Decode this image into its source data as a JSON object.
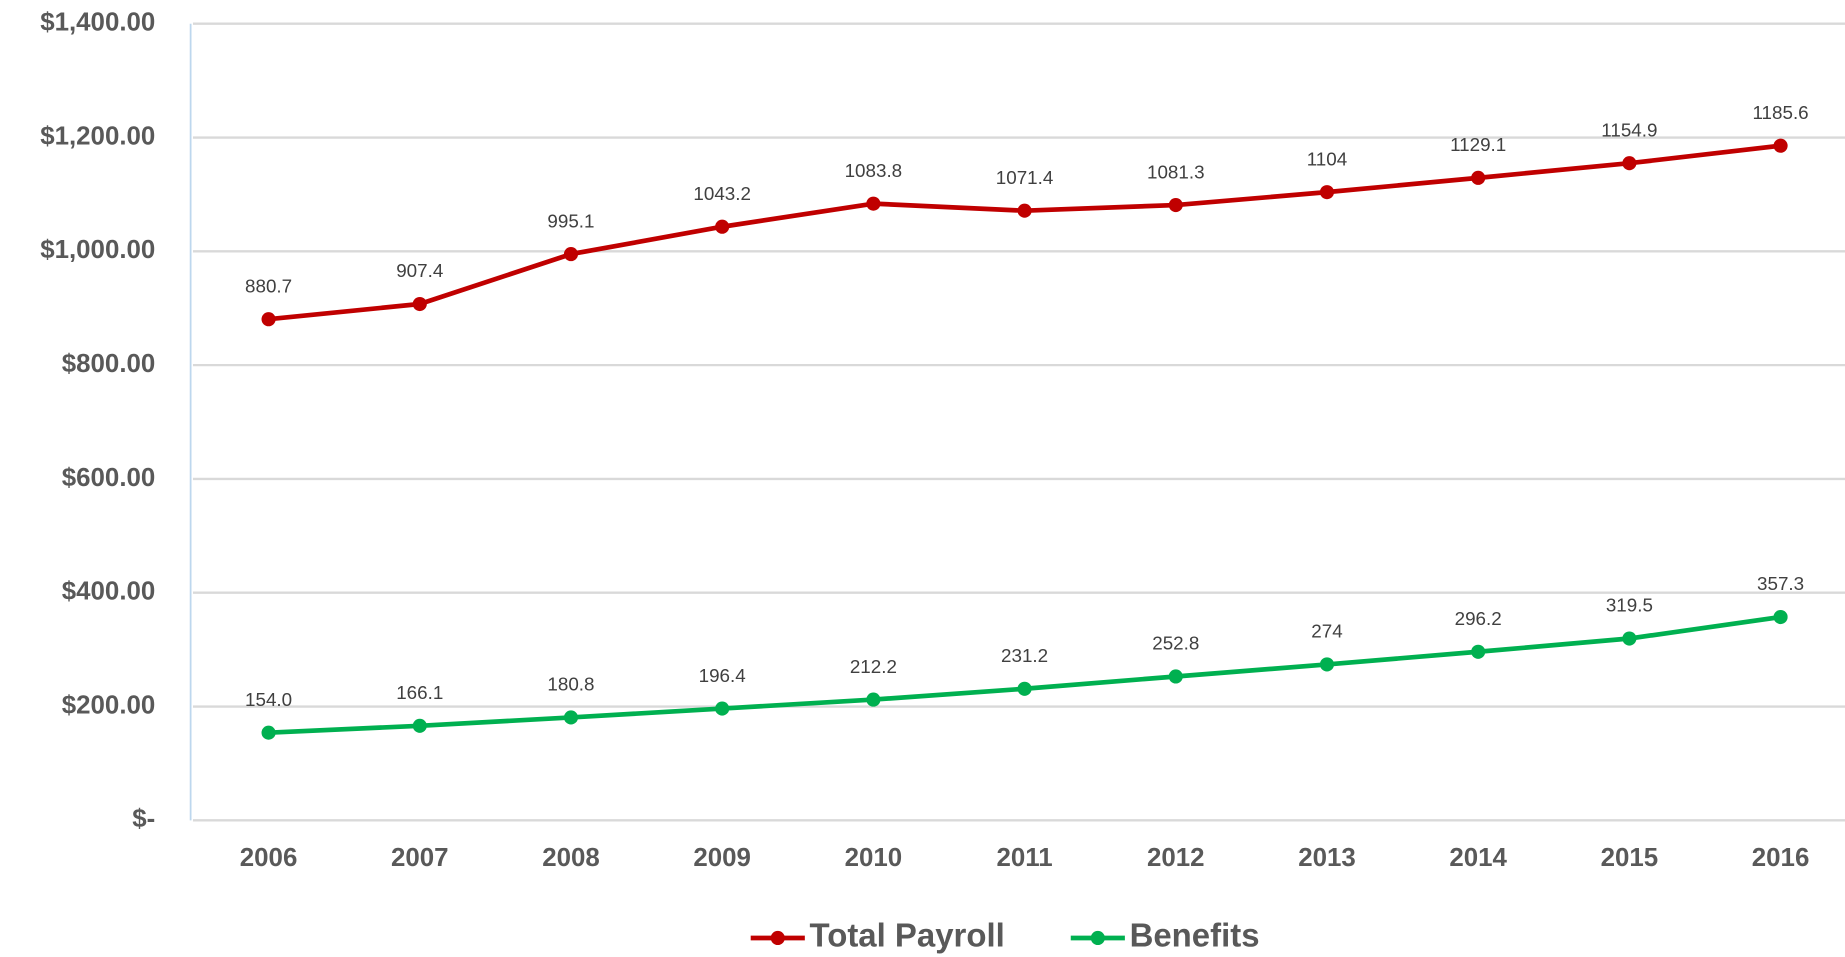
{
  "chart_data": {
    "type": "line",
    "categories": [
      "2006",
      "2007",
      "2008",
      "2009",
      "2010",
      "2011",
      "2012",
      "2013",
      "2014",
      "2015",
      "2016"
    ],
    "series": [
      {
        "name": "Total Payroll",
        "color": "#c00000",
        "values": [
          880.7,
          907.4,
          995.1,
          1043.2,
          1083.8,
          1071.4,
          1081.3,
          1104,
          1129.1,
          1154.9,
          1185.6
        ]
      },
      {
        "name": "Benefits",
        "color": "#00b050",
        "values": [
          154,
          166.1,
          180.8,
          196.4,
          212.2,
          231.2,
          252.8,
          274,
          296.2,
          319.5,
          357.3
        ],
        "value_labels": [
          "154.0",
          "166.1",
          "180.8",
          "196.4",
          "212.2",
          "231.2",
          "252.8",
          "274",
          "296.2",
          "319.5",
          "357.3"
        ]
      }
    ],
    "ylim": [
      0,
      1400
    ],
    "yticks": [
      {
        "value": 0,
        "label": "$-"
      },
      {
        "value": 200,
        "label": "$200.00"
      },
      {
        "value": 400,
        "label": "$400.00"
      },
      {
        "value": 600,
        "label": "$600.00"
      },
      {
        "value": 800,
        "label": "$800.00"
      },
      {
        "value": 1000,
        "label": "$1,000.00"
      },
      {
        "value": 1200,
        "label": "$1,200.00"
      },
      {
        "value": 1400,
        "label": "$1,400.00"
      }
    ],
    "grid": true,
    "legend": "bottom"
  }
}
